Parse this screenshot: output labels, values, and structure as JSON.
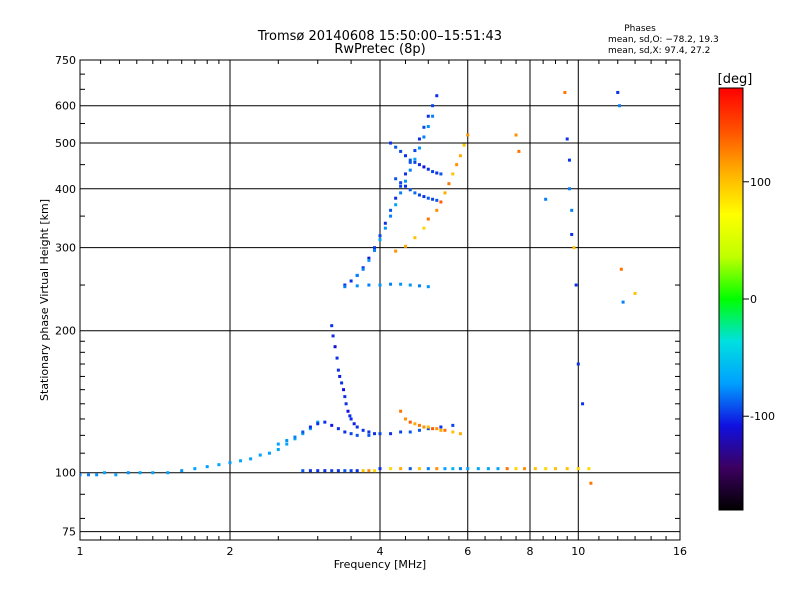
{
  "chart_data": {
    "type": "scatter",
    "title": "Tromsø 20140608 15:50:00–15:51:43",
    "subtitle": "RwPretec (8p)",
    "xlabel": "Frequency [MHz]",
    "ylabel": "Stationary phase Virtual Height [km]",
    "x_scale": "log",
    "y_scale": "log",
    "xlim": [
      1,
      16
    ],
    "ylim": [
      72,
      750
    ],
    "x_ticks": [
      1,
      2,
      4,
      6,
      8,
      10,
      16
    ],
    "y_ticks": [
      75,
      100,
      200,
      300,
      400,
      500,
      600,
      750
    ],
    "grid": true,
    "phase_stats": {
      "heading": "Phases",
      "line_o": "mean, sd,O: −78.2, 19.3",
      "line_x": "mean, sd,X:  97.4, 27.2"
    },
    "colorbar": {
      "label": "[deg]",
      "range": [
        -180,
        180
      ],
      "ticks": [
        100,
        0,
        -100
      ],
      "colors": [
        "#000000",
        "#3c0060",
        "#1010e0",
        "#00a0ff",
        "#00e0e0",
        "#00ff00",
        "#c0ff00",
        "#ffff00",
        "#ffb000",
        "#ff5000",
        "#ff0000"
      ]
    },
    "series": [
      {
        "x": [
          1.0,
          1.04,
          1.08,
          1.12,
          1.18,
          1.25,
          1.32,
          1.4,
          1.5,
          1.6,
          1.7,
          1.8,
          1.9,
          2.0,
          2.1,
          2.2,
          2.3,
          2.4,
          2.5,
          2.6,
          2.7,
          2.8,
          2.9,
          3.0
        ],
        "y": [
          99,
          99,
          99,
          100,
          99,
          100,
          100,
          100,
          100,
          101,
          102,
          103,
          104,
          105,
          106,
          107,
          109,
          110,
          112,
          115,
          118,
          121,
          124,
          128
        ],
        "phase": [
          -80,
          -80,
          -75,
          -70,
          -70,
          -75,
          -70,
          -70,
          -72,
          -75,
          -70,
          -72,
          -70,
          -72,
          -68,
          -70,
          -70,
          -72,
          -68,
          -70,
          -65,
          -70,
          -70,
          -72
        ]
      },
      {
        "x": [
          2.8,
          2.9,
          3.0,
          3.1,
          3.2,
          3.3,
          3.4,
          3.5,
          3.6,
          3.7,
          3.8,
          3.9,
          4.0,
          4.2,
          4.4,
          4.6,
          4.8,
          5.0,
          5.2,
          5.4,
          5.6,
          5.8,
          6.0,
          6.3,
          6.6,
          6.9,
          7.2,
          7.5,
          7.8,
          8.2,
          8.6,
          9.0,
          9.5,
          10.0,
          10.5
        ],
        "y": [
          101,
          101,
          101,
          101,
          101,
          101,
          101,
          101,
          101,
          101,
          101,
          101,
          102,
          102,
          102,
          102,
          102,
          102,
          102,
          102,
          102,
          102,
          102,
          102,
          102,
          102,
          102,
          102,
          102,
          102,
          102,
          102,
          102,
          102,
          102
        ],
        "phase": [
          -90,
          -100,
          -100,
          -100,
          -95,
          -100,
          -90,
          -95,
          -100,
          100,
          120,
          90,
          -100,
          90,
          110,
          -90,
          100,
          -80,
          120,
          -70,
          -60,
          -80,
          -70,
          -70,
          -70,
          -70,
          130,
          90,
          120,
          100,
          90,
          100,
          100,
          90,
          90
        ]
      },
      {
        "x": [
          3.2,
          3.22,
          3.25,
          3.28,
          3.3,
          3.32,
          3.35,
          3.38,
          3.4,
          3.42,
          3.45,
          3.48,
          3.5,
          3.55,
          3.6,
          3.7,
          3.8,
          3.9
        ],
        "y": [
          205,
          195,
          185,
          175,
          165,
          160,
          155,
          150,
          145,
          140,
          135,
          132,
          130,
          127,
          125,
          123,
          122,
          121
        ],
        "phase": [
          -100,
          -100,
          -110,
          -100,
          -100,
          -105,
          -100,
          -110,
          -100,
          -100,
          -110,
          -100,
          -100,
          -105,
          -100,
          -100,
          -100,
          -100
        ]
      },
      {
        "x": [
          2.5,
          2.6,
          2.7,
          2.8,
          2.9,
          3.0,
          3.1,
          3.2,
          3.3,
          3.4,
          3.5,
          3.6,
          3.8,
          4.0,
          4.2,
          4.4,
          4.6,
          4.8,
          5.0,
          5.3,
          5.6
        ],
        "y": [
          115,
          117,
          119,
          122,
          125,
          127,
          128,
          126,
          124,
          122,
          121,
          120,
          120,
          121,
          121,
          122,
          122,
          123,
          124,
          125,
          126
        ],
        "phase": [
          -70,
          -75,
          -80,
          -90,
          -100,
          -100,
          -100,
          -105,
          -100,
          -100,
          -95,
          -90,
          -90,
          -95,
          -100,
          -95,
          -90,
          -90,
          -95,
          -100,
          -95
        ]
      },
      {
        "x": [
          4.4,
          4.5,
          4.6,
          4.7,
          4.8,
          4.9,
          5.0,
          5.1,
          5.2,
          5.3,
          5.4,
          5.6,
          5.8
        ],
        "y": [
          135,
          130,
          128,
          127,
          126,
          125,
          125,
          124,
          124,
          123,
          123,
          122,
          121
        ],
        "phase": [
          130,
          120,
          140,
          110,
          130,
          120,
          100,
          140,
          120,
          110,
          130,
          100,
          110
        ]
      },
      {
        "x": [
          3.4,
          3.5,
          3.6,
          3.7,
          3.8,
          3.9,
          4.0,
          4.1,
          4.2,
          4.3,
          4.4,
          4.5,
          4.6,
          4.7,
          4.8,
          4.9,
          5.0,
          5.1,
          5.2
        ],
        "y": [
          250,
          255,
          262,
          272,
          285,
          300,
          318,
          338,
          360,
          382,
          405,
          430,
          455,
          482,
          510,
          540,
          570,
          600,
          630
        ],
        "phase": [
          -100,
          -100,
          -95,
          -100,
          -110,
          -100,
          -95,
          -100,
          -90,
          -100,
          -95,
          -100,
          -90,
          -95,
          -100,
          -95,
          -100,
          -95,
          -100
        ]
      },
      {
        "x": [
          3.6,
          3.7,
          3.8,
          3.9,
          4.0,
          4.1,
          4.2,
          4.3,
          4.4,
          4.5,
          4.6,
          4.7,
          4.8,
          4.9,
          5.0,
          5.1
        ],
        "y": [
          262,
          270,
          282,
          296,
          312,
          330,
          350,
          370,
          392,
          415,
          438,
          462,
          488,
          515,
          542,
          570
        ],
        "phase": [
          -80,
          -80,
          -75,
          -80,
          -70,
          -75,
          -80,
          -70,
          -80,
          -75,
          -80,
          -70,
          -75,
          -80,
          -75,
          -80
        ]
      },
      {
        "x": [
          4.2,
          4.3,
          4.4,
          4.5,
          4.6,
          4.7,
          4.8,
          4.9,
          5.0,
          5.1,
          5.2,
          5.3
        ],
        "y": [
          500,
          490,
          480,
          470,
          460,
          455,
          450,
          445,
          440,
          435,
          432,
          430
        ],
        "phase": [
          -100,
          -90,
          -95,
          -100,
          -90,
          -95,
          -100,
          -110,
          -100,
          -95,
          -100,
          -90
        ]
      },
      {
        "x": [
          4.3,
          4.4,
          4.5,
          4.6,
          4.7,
          4.8,
          4.9,
          5.0,
          5.1,
          5.2
        ],
        "y": [
          420,
          412,
          405,
          398,
          392,
          388,
          385,
          382,
          380,
          378
        ],
        "phase": [
          -90,
          -95,
          -100,
          -90,
          -85,
          -95,
          -100,
          -90,
          -95,
          -90
        ]
      },
      {
        "x": [
          4.3,
          4.5,
          4.7,
          4.9,
          5.0,
          5.2,
          5.3,
          5.4,
          5.5,
          5.6,
          5.7,
          5.8,
          5.9,
          6.0
        ],
        "y": [
          295,
          302,
          315,
          330,
          345,
          360,
          375,
          392,
          410,
          430,
          450,
          470,
          495,
          520
        ],
        "phase": [
          120,
          110,
          100,
          90,
          130,
          120,
          140,
          110,
          130,
          100,
          120,
          110,
          100,
          120
        ]
      },
      {
        "x": [
          3.4,
          3.6,
          3.8,
          4.0,
          4.2,
          4.4,
          4.6,
          4.8,
          5.0
        ],
        "y": [
          248,
          249,
          250,
          250,
          251,
          251,
          250,
          249,
          248
        ],
        "phase": [
          -80,
          -75,
          -80,
          -75,
          -80,
          -75,
          -75,
          -80,
          -75
        ]
      },
      {
        "x": [
          7.5,
          7.6,
          8.6,
          9.4,
          9.5,
          9.6,
          9.6,
          9.7,
          9.7,
          9.8,
          9.9,
          10.0,
          10.2,
          10.6,
          12.0,
          12.1,
          12.2,
          12.3,
          13.0
        ],
        "y": [
          520,
          480,
          380,
          640,
          510,
          460,
          400,
          360,
          320,
          300,
          250,
          170,
          140,
          95,
          640,
          600,
          270,
          230,
          240
        ],
        "phase": [
          120,
          130,
          -80,
          130,
          -100,
          -100,
          -80,
          -80,
          -100,
          100,
          -100,
          -100,
          -100,
          130,
          -100,
          -80,
          130,
          -80,
          100
        ]
      }
    ]
  }
}
